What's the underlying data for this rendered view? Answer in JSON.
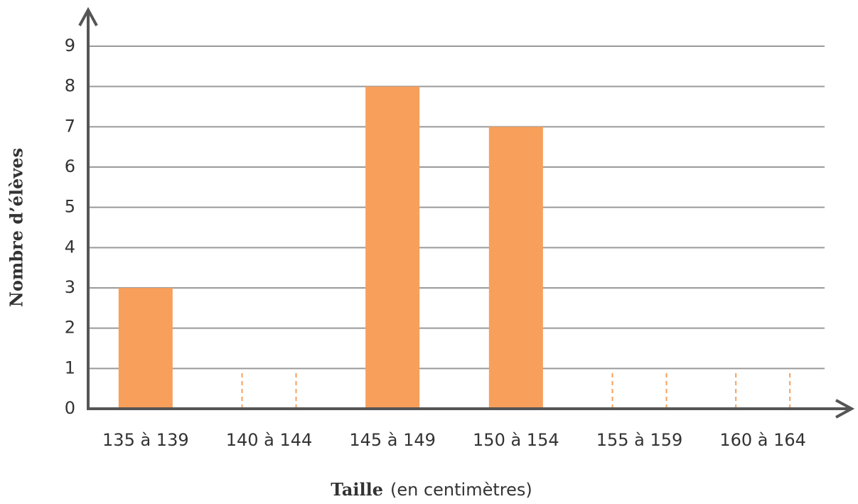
{
  "chart_data": {
    "type": "bar",
    "categories": [
      "135 à 139",
      "140 à 144",
      "145 à 149",
      "150 à 154",
      "155 à 159",
      "160 à 164"
    ],
    "values": [
      3,
      null,
      8,
      7,
      null,
      null
    ],
    "color": "#f79f5b",
    "ylim": [
      0,
      9
    ],
    "yticks": [
      0,
      1,
      2,
      3,
      4,
      5,
      6,
      7,
      8,
      9
    ],
    "grid": true,
    "ylabel": "Nombre d’élèves",
    "xlabel": "Taille",
    "xlabel_unit": "(en centimètres)"
  }
}
